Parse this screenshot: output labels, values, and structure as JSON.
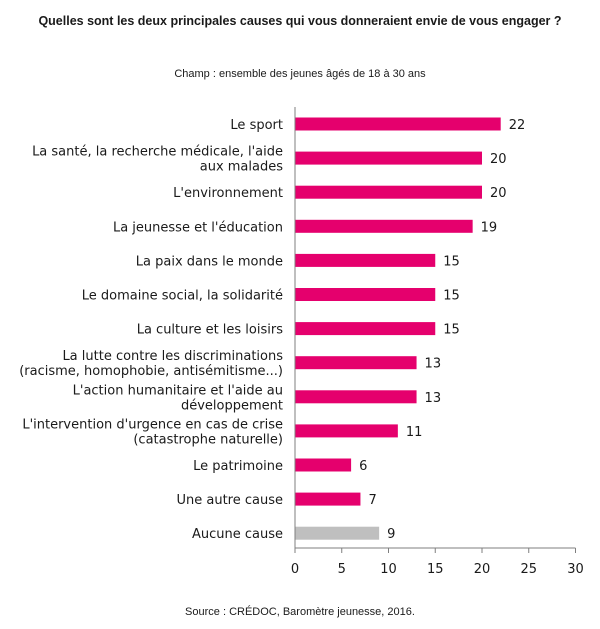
{
  "header": {
    "title": "Quelles sont les deux principales causes qui vous donneraient envie de vous engager ?",
    "subtitle": "Champ : ensemble des jeunes âgés de 18 à 30 ans"
  },
  "footer": {
    "source": "Source : CRÉDOC, Baromètre jeunesse, 2016."
  },
  "colors": {
    "bar": "#e5006d",
    "bar_none": "#bfbfbf"
  },
  "chart_data": {
    "type": "bar",
    "orientation": "horizontal",
    "categories": [
      [
        "Le sport"
      ],
      [
        "La santé, la recherche médicale, l'aide",
        "aux malades"
      ],
      [
        "L'environnement"
      ],
      [
        "La jeunesse et l'éducation"
      ],
      [
        "La paix dans le monde"
      ],
      [
        "Le domaine social, la solidarité"
      ],
      [
        "La culture et les loisirs"
      ],
      [
        "La lutte contre les discriminations",
        "(racisme, homophobie, antisémitisme...)"
      ],
      [
        "L'action humanitaire et l'aide au",
        "développement"
      ],
      [
        "L'intervention d'urgence en cas de crise",
        "(catastrophe naturelle)"
      ],
      [
        "Le patrimoine"
      ],
      [
        "Une autre cause"
      ],
      [
        "Aucune cause"
      ]
    ],
    "values": [
      22,
      20,
      20,
      19,
      15,
      15,
      15,
      13,
      13,
      11,
      6,
      7,
      9
    ],
    "highlight_gray": [
      12
    ],
    "xlim": [
      0,
      30
    ],
    "xticks": [
      0,
      5,
      10,
      15,
      20,
      25,
      30
    ],
    "grid": false,
    "title": "Quelles sont les deux principales causes qui vous donneraient envie de vous engager ?"
  }
}
